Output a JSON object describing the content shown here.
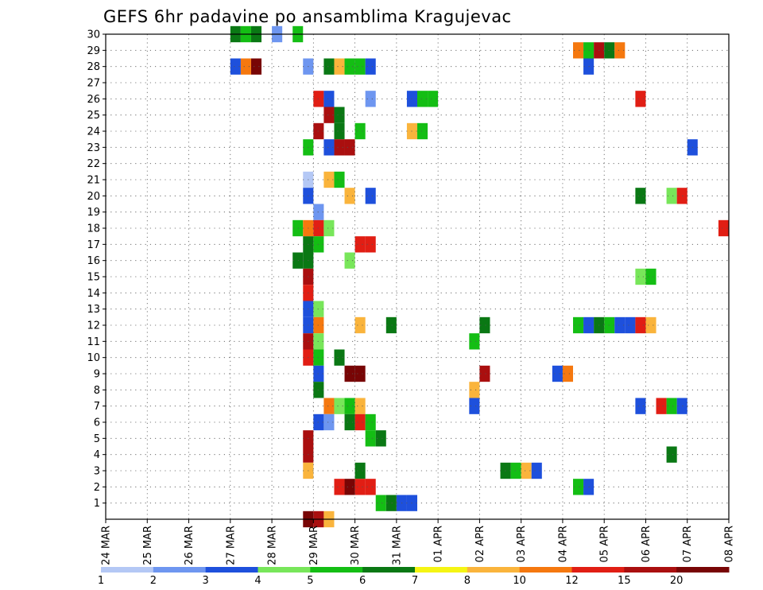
{
  "chart_data": {
    "type": "heatmap",
    "title": "GEFS 6hr padavine po ansamblima Kragujevac",
    "xlabel": "",
    "ylabel": "",
    "x_tick_labels": [
      "24 MAR",
      "25 MAR",
      "26 MAR",
      "27 MAR",
      "28 MAR",
      "29 MAR",
      "30 MAR",
      "31 MAR",
      "01 APR",
      "02 APR",
      "03 APR",
      "04 APR",
      "05 APR",
      "06 APR",
      "07 APR",
      "08 APR"
    ],
    "y_tick_labels": [
      "1",
      "2",
      "3",
      "4",
      "5",
      "6",
      "7",
      "8",
      "9",
      "10",
      "11",
      "12",
      "13",
      "14",
      "15",
      "16",
      "17",
      "18",
      "19",
      "20",
      "21",
      "22",
      "23",
      "24",
      "25",
      "26",
      "27",
      "28",
      "29",
      "30"
    ],
    "y_range": [
      0,
      30
    ],
    "x_range_days": [
      0,
      15
    ],
    "time_step_hours": 6,
    "grid": "dotted",
    "colorbar": {
      "position": "bottom",
      "labels": [
        "1",
        "2",
        "3",
        "4",
        "5",
        "6",
        "7",
        "8",
        "10",
        "12",
        "15",
        "20"
      ],
      "colors": [
        "#b4c8f5",
        "#6e96f0",
        "#1e50dc",
        "#78e65a",
        "#14be14",
        "#0a7814",
        "#f5f514",
        "#fab43c",
        "#f5780f",
        "#e11e14",
        "#aa0f0f",
        "#780505"
      ]
    },
    "cells": [
      [
        28,
        4.75,
        2
      ],
      [
        23,
        4.75,
        5
      ],
      [
        21,
        4.75,
        1
      ],
      [
        21,
        5.25,
        8
      ],
      [
        21,
        5.5,
        5
      ],
      [
        20,
        4.75,
        3
      ],
      [
        19,
        5.0,
        2
      ],
      [
        18,
        4.5,
        5
      ],
      [
        18,
        4.75,
        9
      ],
      [
        18,
        5.0,
        10
      ],
      [
        18,
        5.25,
        4
      ],
      [
        17,
        4.75,
        6
      ],
      [
        17,
        5.0,
        5
      ],
      [
        16,
        4.5,
        6
      ],
      [
        16,
        4.75,
        6
      ],
      [
        15,
        4.75,
        11
      ],
      [
        14,
        4.75,
        10
      ],
      [
        13,
        4.75,
        3
      ],
      [
        13,
        5.0,
        4
      ],
      [
        12,
        4.75,
        3
      ],
      [
        12,
        5.0,
        9
      ],
      [
        11,
        4.75,
        11
      ],
      [
        11,
        5.0,
        4
      ],
      [
        10,
        4.75,
        10
      ],
      [
        10,
        5.0,
        5
      ],
      [
        9,
        5.0,
        3
      ],
      [
        9,
        5.75,
        12
      ],
      [
        9,
        6.0,
        12
      ],
      [
        8,
        5.0,
        6
      ],
      [
        7,
        5.25,
        9
      ],
      [
        7,
        5.5,
        4
      ],
      [
        6,
        5.0,
        3
      ],
      [
        6,
        5.25,
        2
      ],
      [
        5,
        4.75,
        11
      ],
      [
        4,
        4.75,
        11
      ],
      [
        3,
        4.75,
        8
      ],
      [
        0,
        4.75,
        12
      ],
      [
        0,
        5.0,
        11
      ],
      [
        0,
        5.25,
        8
      ],
      [
        28,
        3.5,
        12
      ],
      [
        28,
        3.25,
        9
      ],
      [
        28,
        3.0,
        3
      ],
      [
        28,
        5.25,
        6
      ],
      [
        28,
        5.5,
        8
      ],
      [
        28,
        5.75,
        5
      ],
      [
        28,
        6.0,
        5
      ],
      [
        28,
        6.25,
        3
      ],
      [
        30,
        3.0,
        6
      ],
      [
        30,
        3.25,
        5
      ],
      [
        30,
        3.5,
        6
      ],
      [
        30,
        4.0,
        2
      ],
      [
        30,
        4.5,
        5
      ],
      [
        26,
        5.0,
        10
      ],
      [
        26,
        5.25,
        3
      ],
      [
        26,
        6.25,
        2
      ],
      [
        26,
        7.25,
        3
      ],
      [
        26,
        7.5,
        5
      ],
      [
        26,
        7.75,
        5
      ],
      [
        25,
        5.25,
        11
      ],
      [
        25,
        5.5,
        6
      ],
      [
        24,
        5.0,
        11
      ],
      [
        24,
        5.5,
        6
      ],
      [
        24,
        6.0,
        5
      ],
      [
        24,
        7.25,
        8
      ],
      [
        24,
        7.5,
        5
      ],
      [
        23,
        5.5,
        11
      ],
      [
        23,
        5.75,
        11
      ],
      [
        23,
        5.25,
        3
      ],
      [
        20,
        5.75,
        8
      ],
      [
        20,
        6.25,
        3
      ],
      [
        17,
        6.0,
        10
      ],
      [
        17,
        6.25,
        10
      ],
      [
        16,
        5.75,
        4
      ],
      [
        12,
        6.0,
        8
      ],
      [
        12,
        6.75,
        6
      ],
      [
        10,
        5.5,
        6
      ],
      [
        7,
        5.75,
        5
      ],
      [
        7,
        6.0,
        8
      ],
      [
        6,
        5.75,
        6
      ],
      [
        6,
        6.0,
        10
      ],
      [
        6,
        6.25,
        5
      ],
      [
        5,
        6.25,
        5
      ],
      [
        5,
        6.5,
        6
      ],
      [
        3,
        6.0,
        6
      ],
      [
        2,
        5.5,
        10
      ],
      [
        2,
        5.75,
        12
      ],
      [
        2,
        6.0,
        10
      ],
      [
        2,
        6.25,
        10
      ],
      [
        1,
        6.5,
        5
      ],
      [
        1,
        6.75,
        6
      ],
      [
        1,
        7.0,
        3
      ],
      [
        1,
        7.25,
        3
      ],
      [
        12,
        9.0,
        6
      ],
      [
        11,
        8.75,
        5
      ],
      [
        9,
        9.0,
        11
      ],
      [
        8,
        8.75,
        8
      ],
      [
        7,
        8.75,
        3
      ],
      [
        3,
        9.5,
        6
      ],
      [
        3,
        9.75,
        5
      ],
      [
        3,
        10.0,
        8
      ],
      [
        3,
        10.25,
        3
      ],
      [
        29,
        11.25,
        9
      ],
      [
        29,
        11.5,
        5
      ],
      [
        29,
        11.75,
        11
      ],
      [
        29,
        12.0,
        6
      ],
      [
        29,
        12.25,
        9
      ],
      [
        28,
        11.5,
        3
      ],
      [
        26,
        12.75,
        10
      ],
      [
        20,
        12.75,
        6
      ],
      [
        20,
        13.5,
        4
      ],
      [
        20,
        13.75,
        10
      ],
      [
        18,
        14.75,
        10
      ],
      [
        15,
        12.75,
        4
      ],
      [
        15,
        13.0,
        5
      ],
      [
        12,
        11.25,
        5
      ],
      [
        12,
        11.5,
        3
      ],
      [
        12,
        11.75,
        6
      ],
      [
        12,
        12.0,
        5
      ],
      [
        12,
        12.25,
        3
      ],
      [
        12,
        12.5,
        3
      ],
      [
        12,
        12.75,
        10
      ],
      [
        12,
        13.0,
        8
      ],
      [
        7,
        12.75,
        3
      ],
      [
        7,
        13.25,
        10
      ],
      [
        7,
        13.5,
        5
      ],
      [
        7,
        13.75,
        3
      ],
      [
        4,
        13.5,
        6
      ],
      [
        2,
        11.25,
        5
      ],
      [
        2,
        11.5,
        3
      ],
      [
        9,
        10.75,
        3
      ],
      [
        9,
        11.0,
        9
      ],
      [
        23,
        14.0,
        3
      ]
    ]
  }
}
